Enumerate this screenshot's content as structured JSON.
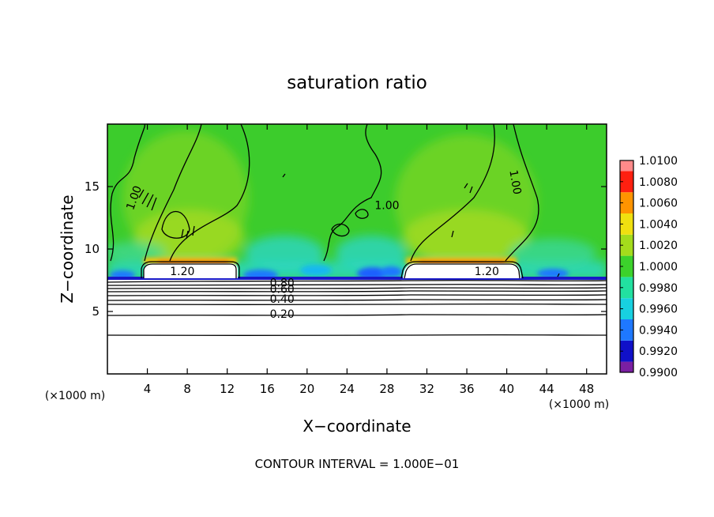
{
  "chart_data": {
    "type": "heatmap",
    "title": "saturation ratio",
    "xlabel": "X−coordinate",
    "ylabel": "Z−coordinate",
    "x_unit_left": "(×1000 m)",
    "x_unit_right": "(×1000 m)",
    "footer": "CONTOUR INTERVAL = 1.000E−01",
    "xlim": [
      0,
      50
    ],
    "ylim": [
      0,
      20
    ],
    "x_ticks": [
      4,
      8,
      12,
      16,
      20,
      24,
      28,
      32,
      36,
      40,
      44,
      48
    ],
    "y_ticks": [
      5,
      10,
      15
    ],
    "colorbar": {
      "levels": [
        0.99,
        0.992,
        0.994,
        0.996,
        0.998,
        1.0,
        1.002,
        1.004,
        1.006,
        1.008,
        1.01
      ],
      "labels": [
        "0.9900",
        "0.9920",
        "0.9940",
        "0.9960",
        "0.9980",
        "1.0000",
        "1.0020",
        "1.0040",
        "1.0060",
        "1.0080",
        "1.0100"
      ],
      "colors": [
        "#7a1fa2",
        "#1010c8",
        "#1e78ff",
        "#18d0e0",
        "#22e0a0",
        "#3cd22c",
        "#a4dc1c",
        "#f0e010",
        "#ff9400",
        "#ff2010",
        "#ff8a8a"
      ]
    },
    "contour_labels": [
      {
        "text": "1.00",
        "x": 3.0,
        "z": 14.0,
        "rotate": -70
      },
      {
        "text": "1.00",
        "x": 28.0,
        "z": 13.2,
        "rotate": 0
      },
      {
        "text": "1.00",
        "x": 40.5,
        "z": 15.3,
        "rotate": 80
      },
      {
        "text": "1.20",
        "x": 7.5,
        "z": 7.9,
        "rotate": 0
      },
      {
        "text": "1.20",
        "x": 38.0,
        "z": 7.9,
        "rotate": 0
      },
      {
        "text": "0.80",
        "x": 17.5,
        "z": 7.0,
        "rotate": 0
      },
      {
        "text": "0.60",
        "x": 17.5,
        "z": 6.5,
        "rotate": 0
      },
      {
        "text": "0.40",
        "x": 17.5,
        "z": 5.7,
        "rotate": 0
      },
      {
        "text": "0.20",
        "x": 17.5,
        "z": 4.5,
        "rotate": 0
      }
    ]
  }
}
